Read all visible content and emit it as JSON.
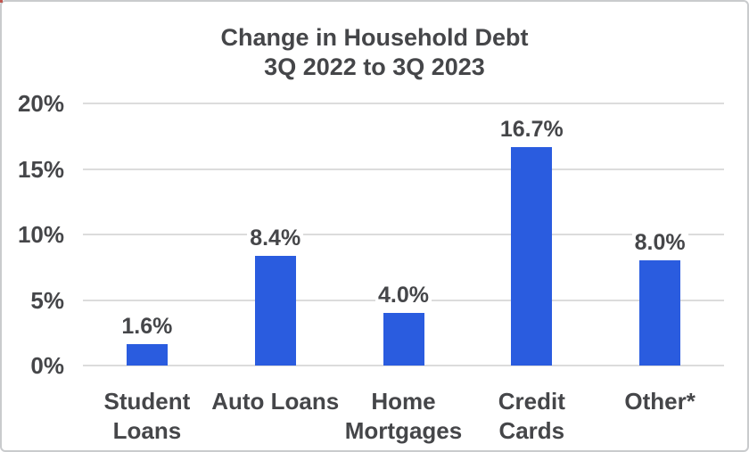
{
  "window": {
    "background": "#ffffff",
    "border_color": "#c9cbcd"
  },
  "chart_data": {
    "type": "bar",
    "title": "Change in Household Debt",
    "subtitle": "3Q 2022 to 3Q 2023",
    "categories": [
      "Student Loans",
      "Auto Loans",
      "Home Mortgages",
      "Credit Cards",
      "Other*"
    ],
    "values": [
      1.6,
      8.4,
      4.0,
      16.7,
      8.0
    ],
    "value_labels": [
      "1.6%",
      "8.4%",
      "4.0%",
      "16.7%",
      "8.0%"
    ],
    "yticks": [
      0,
      5,
      10,
      15,
      20
    ],
    "ytick_labels": [
      "0%",
      "5%",
      "10%",
      "15%",
      "20%"
    ],
    "ylim": [
      0,
      20
    ],
    "grid": true,
    "legend": "none",
    "xlabel": "",
    "ylabel": "",
    "bar_color": "#2a5cdf",
    "text_color": "#454649",
    "gridline_color": "#dcdcdc"
  }
}
